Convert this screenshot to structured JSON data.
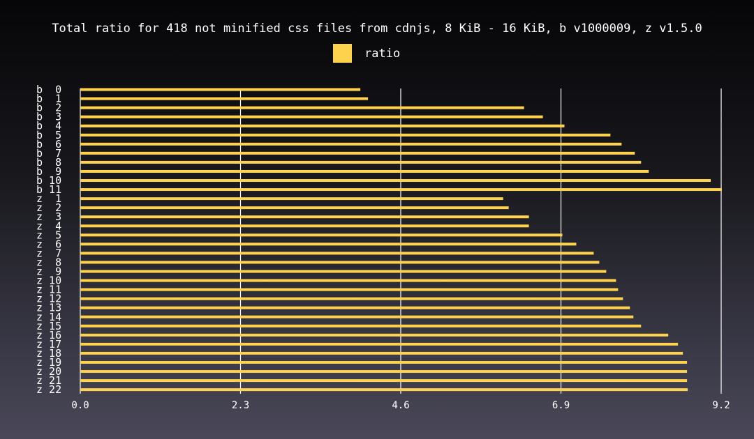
{
  "colors": {
    "bar": "#ffd24d",
    "grid": "#ffffff",
    "text": "#ffffff"
  },
  "chart_data": {
    "type": "bar",
    "orientation": "horizontal",
    "title": "Total ratio for 418 not minified css files from cdnjs, 8 KiB - 16 KiB, b v1000009, z v1.5.0",
    "xlabel": "",
    "ylabel": "",
    "xlim": [
      0,
      9.2
    ],
    "xticks": [
      "0.0",
      "2.3",
      "4.6",
      "6.9",
      "9.2"
    ],
    "grid": true,
    "legend_position": "top-center",
    "categories": [
      "b  0",
      "b  1",
      "b  2",
      "b  3",
      "b  4",
      "b  5",
      "b  6",
      "b  7",
      "b  8",
      "b  9",
      "b 10",
      "b 11",
      "z  1",
      "z  2",
      "z  3",
      "z  4",
      "z  5",
      "z  6",
      "z  7",
      "z  8",
      "z  9",
      "z 10",
      "z 11",
      "z 12",
      "z 13",
      "z 14",
      "z 15",
      "z 16",
      "z 17",
      "z 18",
      "z 19",
      "z 20",
      "z 21",
      "z 22"
    ],
    "series": [
      {
        "name": "ratio",
        "values": [
          4.02,
          4.13,
          6.37,
          6.64,
          6.95,
          7.61,
          7.77,
          7.96,
          8.05,
          8.16,
          9.05,
          9.21,
          6.07,
          6.15,
          6.44,
          6.44,
          6.92,
          7.12,
          7.37,
          7.45,
          7.55,
          7.69,
          7.72,
          7.79,
          7.89,
          7.94,
          8.05,
          8.44,
          8.58,
          8.65,
          8.71,
          8.71,
          8.71,
          8.72
        ]
      }
    ]
  }
}
